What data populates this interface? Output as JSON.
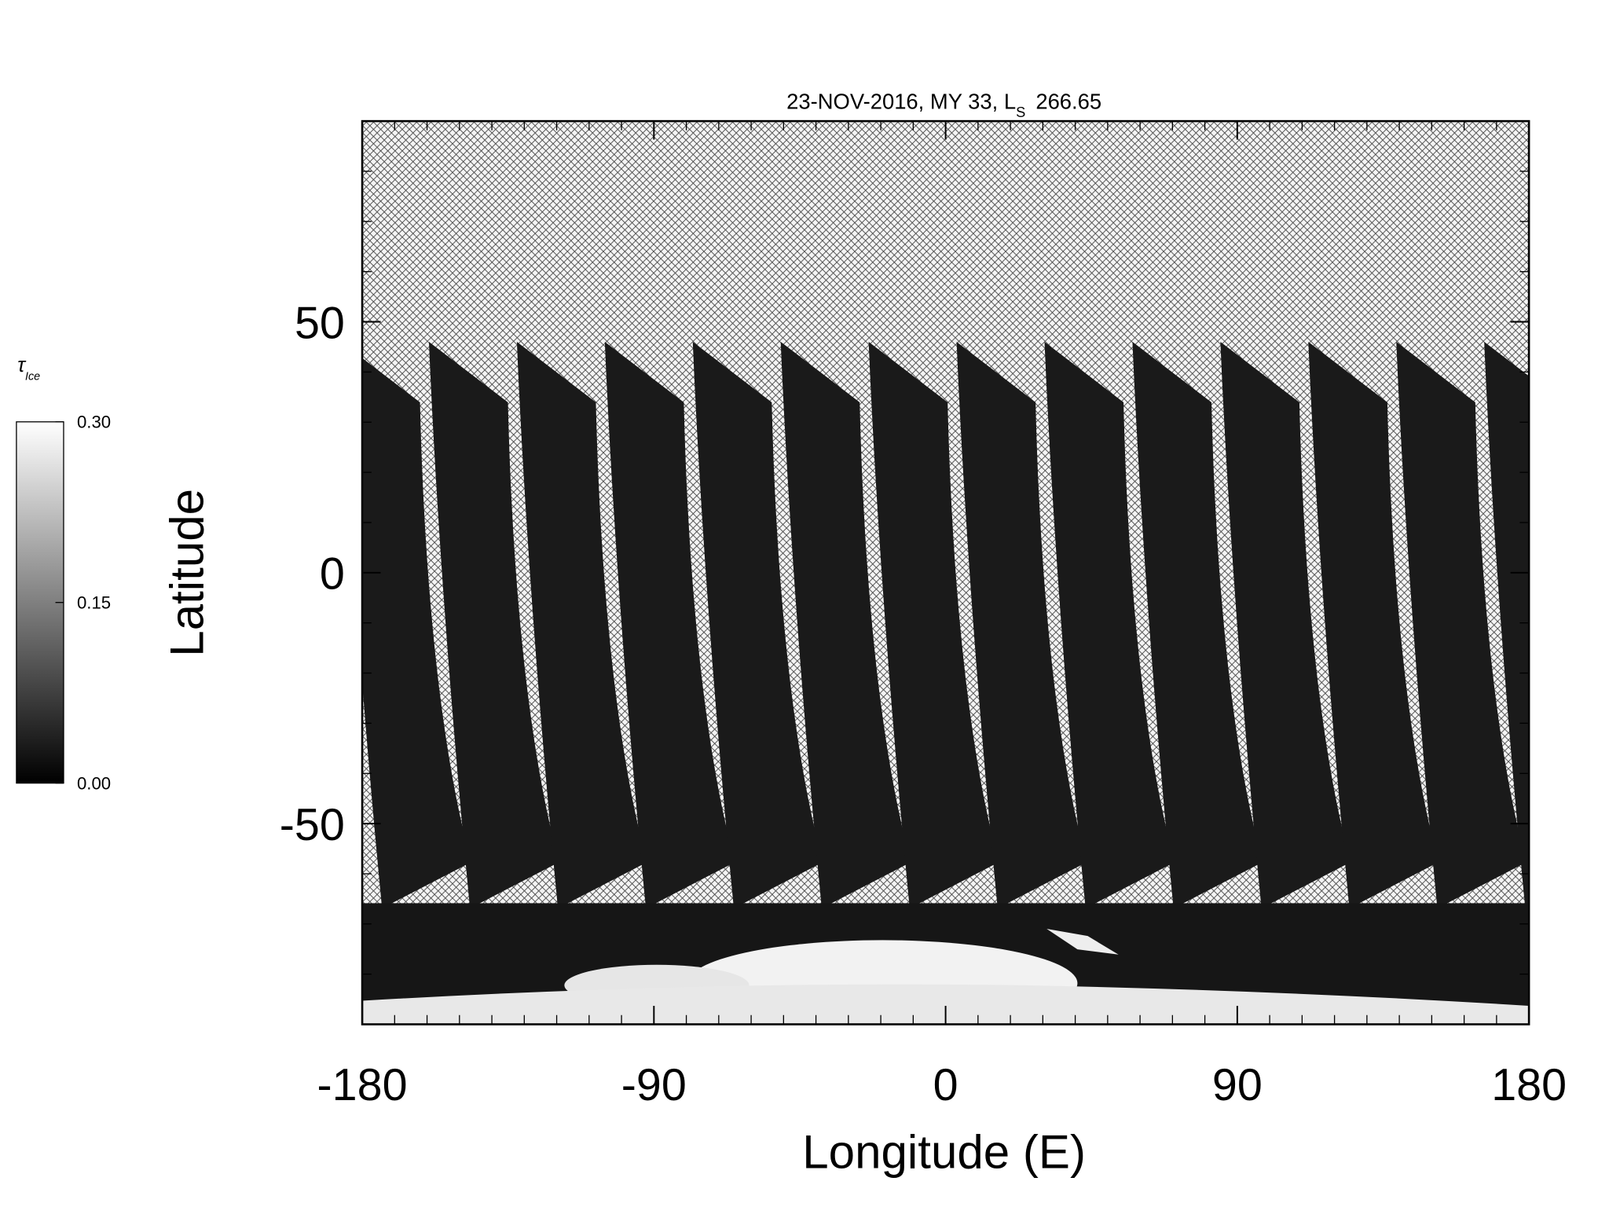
{
  "chart_data": {
    "type": "map",
    "title": "23-NOV-2016, MY 33,  L",
    "title_sub": "S",
    "title_end": "266.65",
    "xlabel": "Longitude (E)",
    "ylabel": "Latitude",
    "xlim": [
      -180,
      180
    ],
    "ylim": [
      -90,
      90
    ],
    "xticks": [
      -180,
      -90,
      0,
      90,
      180
    ],
    "yticks": [
      -50,
      0,
      50
    ],
    "xminorticks": [
      -170,
      -160,
      -150,
      -140,
      -130,
      -120,
      -110,
      -100,
      -80,
      -70,
      -60,
      -50,
      -40,
      -30,
      -20,
      -10,
      10,
      20,
      30,
      40,
      50,
      60,
      70,
      80,
      100,
      110,
      120,
      130,
      140,
      150,
      160,
      170
    ],
    "yminorticks": [
      -80,
      -70,
      -60,
      -40,
      -30,
      -20,
      -10,
      10,
      20,
      30,
      40,
      60,
      70,
      80
    ],
    "colorbar": {
      "label": "τ",
      "label_sub": "Ice",
      "lim": [
        0,
        0.3
      ],
      "ticks": [
        {
          "value": 0,
          "label": "0.00"
        },
        {
          "value": 0.15,
          "label": "0.15"
        },
        {
          "value": 0.3,
          "label": "0.30"
        }
      ]
    }
  }
}
